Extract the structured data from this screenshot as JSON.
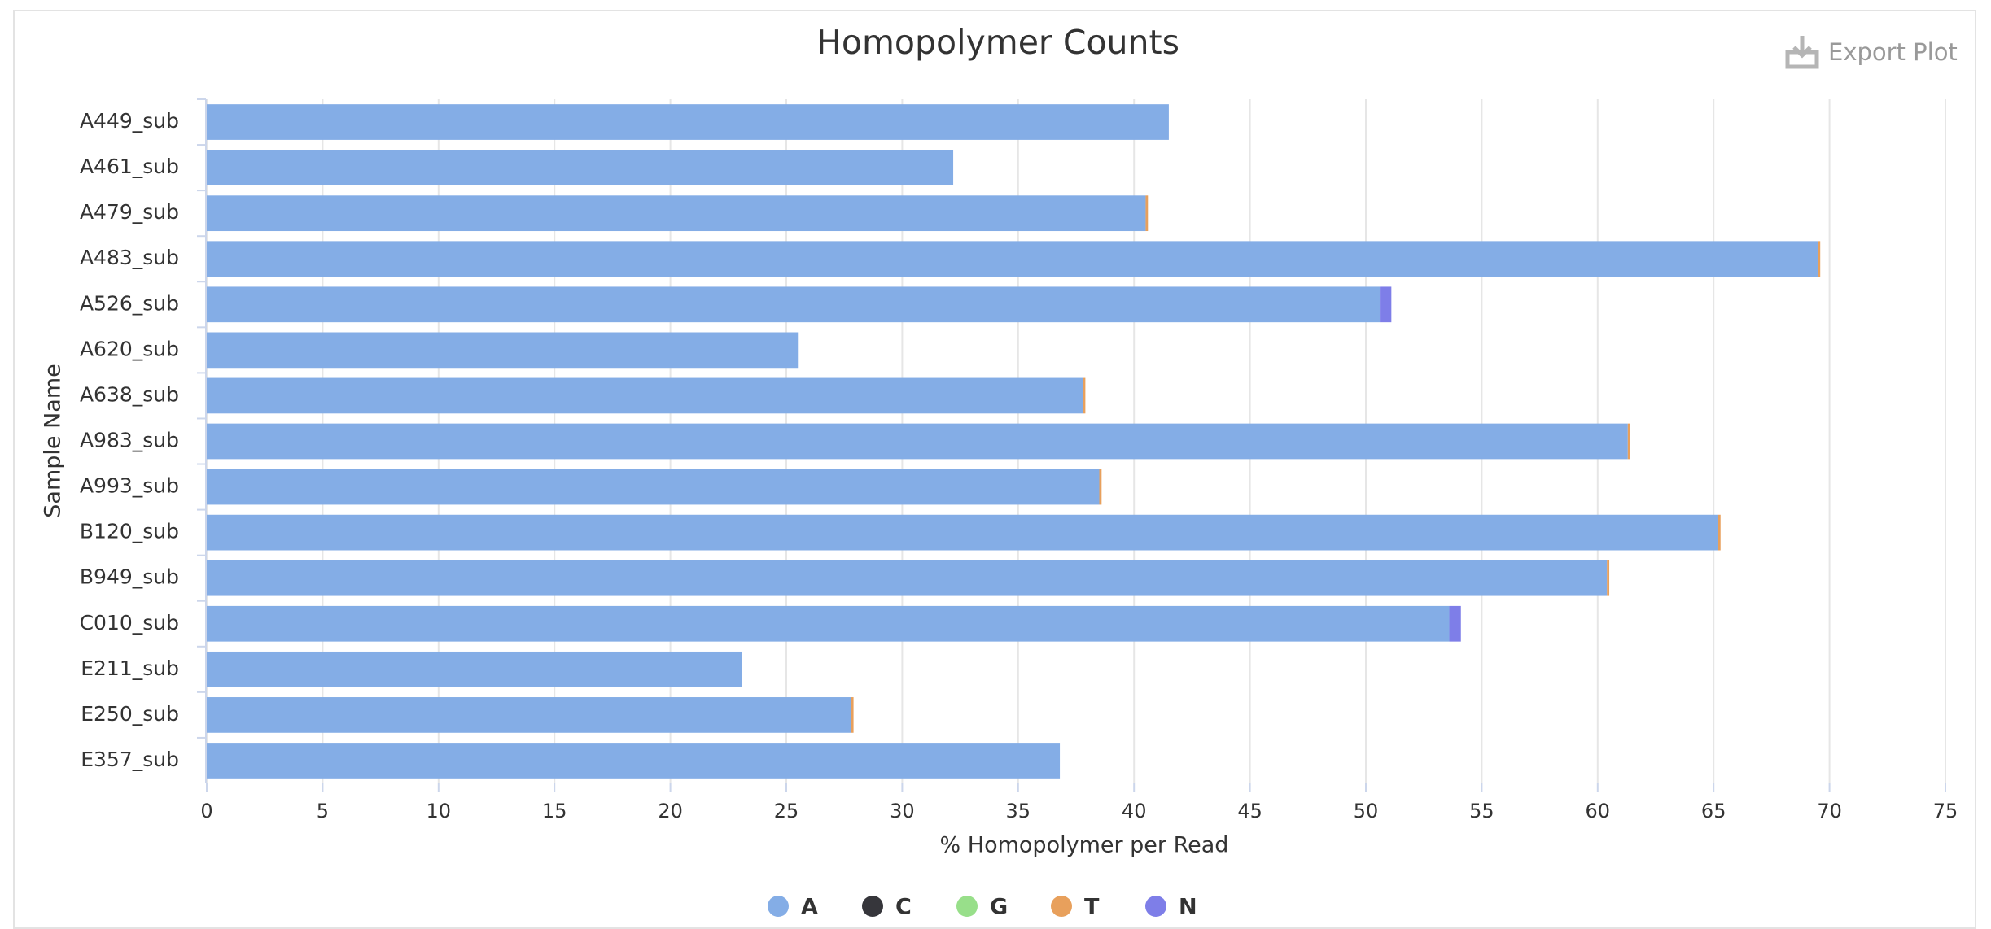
{
  "ui": {
    "export_button": "Export Plot"
  },
  "chart_data": {
    "type": "stacked-hbar",
    "title": "Homopolymer Counts",
    "x_label": "% Homopolymer per Read",
    "y_label": "Sample Name",
    "categories": [
      "A449_sub",
      "A461_sub",
      "A479_sub",
      "A483_sub",
      "A526_sub",
      "A620_sub",
      "A638_sub",
      "A983_sub",
      "A993_sub",
      "B120_sub",
      "B949_sub",
      "C010_sub",
      "E211_sub",
      "E250_sub",
      "E357_sub"
    ],
    "series": [
      {
        "name": "A",
        "color": "#84ade6",
        "values": [
          41.5,
          32.2,
          40.5,
          69.5,
          50.6,
          25.5,
          37.8,
          61.3,
          38.5,
          65.2,
          60.4,
          53.6,
          23.1,
          27.8,
          36.8
        ]
      },
      {
        "name": "C",
        "color": "#36363b",
        "values": [
          0,
          0,
          0,
          0,
          0,
          0,
          0,
          0,
          0,
          0,
          0,
          0,
          0,
          0,
          0
        ]
      },
      {
        "name": "G",
        "color": "#98df8a",
        "values": [
          0,
          0,
          0,
          0,
          0,
          0,
          0,
          0,
          0,
          0,
          0,
          0,
          0,
          0,
          0
        ]
      },
      {
        "name": "T",
        "color": "#e8a05c",
        "values": [
          0,
          0,
          0.1,
          0.1,
          0,
          0,
          0.1,
          0.1,
          0.1,
          0.1,
          0.1,
          0,
          0,
          0.1,
          0
        ]
      },
      {
        "name": "N",
        "color": "#7e7ee8",
        "values": [
          0,
          0,
          0,
          0,
          0.5,
          0,
          0,
          0,
          0,
          0,
          0,
          0.5,
          0,
          0,
          0
        ]
      }
    ],
    "xlim": [
      0,
      75
    ],
    "xticks": [
      0,
      5,
      10,
      15,
      20,
      25,
      30,
      35,
      40,
      45,
      50,
      55,
      60,
      65,
      70,
      75
    ],
    "grid": true,
    "legend": "bottom"
  }
}
